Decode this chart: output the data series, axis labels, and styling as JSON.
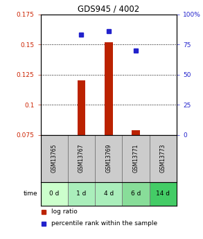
{
  "title": "GDS945 / 4002",
  "samples": [
    "GSM13765",
    "GSM13767",
    "GSM13769",
    "GSM13771",
    "GSM13773"
  ],
  "time_labels": [
    "0 d",
    "1 d",
    "4 d",
    "6 d",
    "14 d"
  ],
  "time_colors": [
    "#ccffcc",
    "#aaeebb",
    "#aaeebb",
    "#88dd99",
    "#44cc66"
  ],
  "ylim_left": [
    0.075,
    0.175
  ],
  "ylim_right": [
    0,
    100
  ],
  "yticks_left": [
    0.075,
    0.1,
    0.125,
    0.15,
    0.175
  ],
  "yticks_right": [
    0,
    25,
    50,
    75,
    100
  ],
  "ytick_labels_left": [
    "0.075",
    "0.1",
    "0.125",
    "0.15",
    "0.175"
  ],
  "ytick_labels_right": [
    "0",
    "25",
    "50",
    "75",
    "100%"
  ],
  "log_ratio": [
    null,
    0.12,
    0.152,
    0.079,
    null
  ],
  "percentile_rank": [
    null,
    83,
    86,
    70,
    null
  ],
  "bar_color": "#bb2200",
  "point_color": "#2222cc",
  "bar_bottom": 0.075,
  "legend_log_ratio": "log ratio",
  "legend_percentile": "percentile rank within the sample",
  "grid_lines": [
    0.1,
    0.125,
    0.15
  ]
}
